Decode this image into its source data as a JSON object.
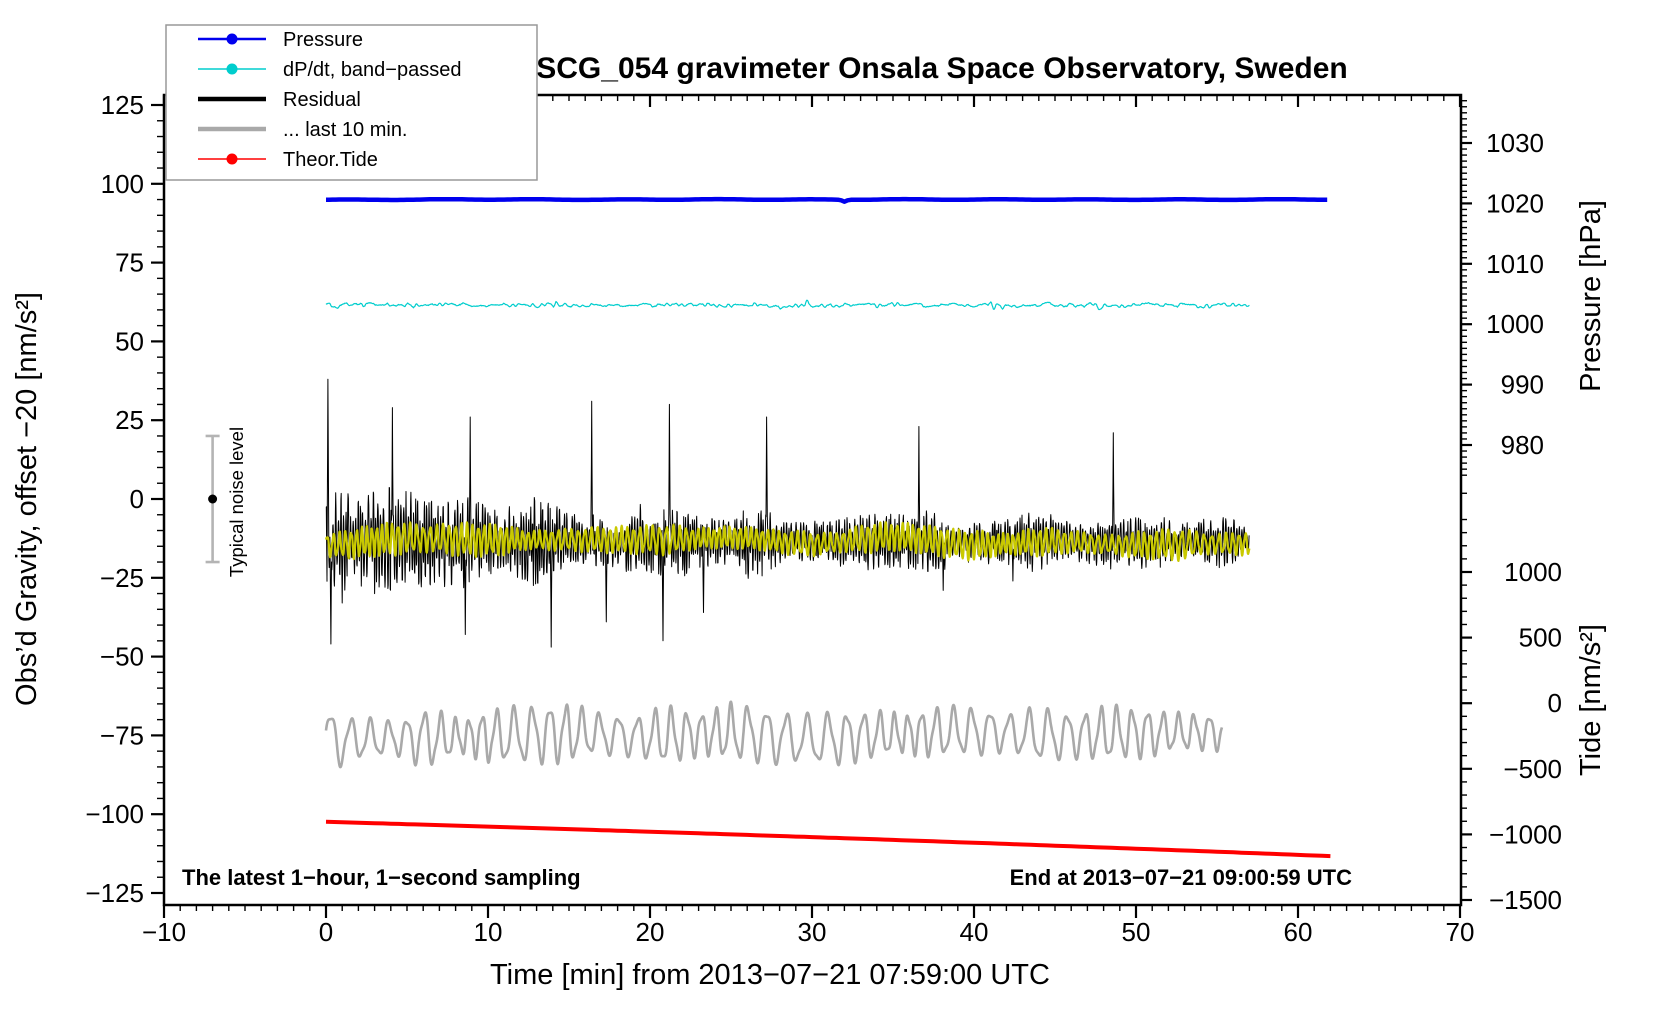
{
  "page": {
    "background": "#ffffff"
  },
  "chart_data": {
    "type": "line",
    "title": "SCG_054 gravimeter Onsala Space Observatory, Sweden",
    "axes": {
      "x": {
        "title": "Time [min] from 2013−07−21 07:59:00 UTC",
        "range": [
          -10,
          70
        ],
        "major_values": [
          -10,
          0,
          10,
          20,
          30,
          40,
          50,
          60,
          70
        ],
        "major_labels": [
          "−10",
          "0",
          "10",
          "20",
          "30",
          "40",
          "50",
          "60",
          "70"
        ],
        "minor_step": 1,
        "units": "minutes"
      },
      "gravity": {
        "title": "Obs’d Gravity, offset −20 [nm/s²]",
        "range": [
          -128,
          128
        ],
        "major_values": [
          125,
          100,
          75,
          50,
          25,
          0,
          -25,
          -50,
          -75,
          -100,
          -125
        ],
        "major_labels": [
          "125",
          "100",
          "75",
          "50",
          "25",
          "0",
          "−25",
          "−50",
          "−75",
          "−100",
          "−125"
        ],
        "minor_step": 5
      },
      "pressure": {
        "title": "Pressure [hPa]",
        "major_values": [
          1030,
          1020,
          1010,
          1000,
          990,
          980
        ],
        "major_labels": [
          "1030",
          "1020",
          "1010",
          "1000",
          "990",
          "980"
        ],
        "minor_step": 1,
        "minor_range": [
          975,
          1037
        ]
      },
      "tide": {
        "title": "Tide [nm/s²]",
        "major_values": [
          1000,
          500,
          0,
          -500,
          -1000,
          -1500
        ],
        "major_labels": [
          "1000",
          "500",
          "0",
          "−500",
          "−1000",
          "−1500"
        ],
        "minor_step": 100,
        "minor_range": [
          -1500,
          1600
        ]
      }
    },
    "annotations": {
      "sampling_note": "The latest 1−hour, 1−second sampling",
      "end_time_note": "End at 2013−07−21 09:00:59 UTC",
      "noise_marker": {
        "label": "Typical noise level",
        "x_minutes": -7,
        "center_value": 0,
        "half_range": 20,
        "bar_color": "#b4b4b4",
        "dot_color": "#000000"
      }
    },
    "legend": [
      {
        "label": "Pressure",
        "color": "#0000ee",
        "dot": true,
        "line_width": 2.5
      },
      {
        "label": "dP/dt, band−passed",
        "color": "#00cdcd",
        "dot": true,
        "line_width": 1.5
      },
      {
        "label": "Residual",
        "color": "#000000",
        "dot": false,
        "line_width": 4.5
      },
      {
        "label": "... last 10 min.",
        "color": "#a9a9a9",
        "dot": false,
        "line_width": 4.5
      },
      {
        "label": "Theor.Tide",
        "color": "#ff0000",
        "dot": true,
        "line_width": 1.5
      }
    ],
    "series": [
      {
        "name": "residual",
        "gen": "spiky",
        "color": "#000000",
        "width": 1,
        "x_start": 0,
        "x_end": 57,
        "center": -13.5,
        "amp_start": 28,
        "amp_end": 9,
        "decay_min": 16,
        "spikes": [
          [
            0.12,
            38
          ],
          [
            0.3,
            -46
          ],
          [
            1.0,
            -33
          ],
          [
            4.1,
            29
          ],
          [
            8.6,
            -43
          ],
          [
            8.9,
            26
          ],
          [
            13.9,
            -47
          ],
          [
            16.4,
            31
          ],
          [
            17.3,
            -39
          ],
          [
            20.8,
            -45
          ],
          [
            21.2,
            30
          ],
          [
            23.3,
            -36
          ],
          [
            27.2,
            26
          ],
          [
            36.6,
            23
          ],
          [
            38.1,
            -29
          ],
          [
            42.4,
            -26
          ],
          [
            48.6,
            21
          ]
        ]
      },
      {
        "name": "residual_smoothed",
        "gen": "osc",
        "color": "#c9c900",
        "width": 2.2,
        "x_start": 0,
        "x_end": 57,
        "center": -13.5,
        "amp": 4.3,
        "period_min": 0.38,
        "wander": 1.6
      },
      {
        "name": "residual_last_10_min",
        "gen": "osc",
        "color": "#a9a9a9",
        "width": 2.6,
        "x_start": 0,
        "x_end": 55.3,
        "center": -75,
        "amp": 7.8,
        "period_min": 1.05,
        "wander": 1.4
      },
      {
        "name": "theor_tide",
        "gen": "trend",
        "color": "#ff0000",
        "width": 4,
        "x_start": 0,
        "x_end": 62,
        "start_value": -102.4,
        "end_value": -113.3,
        "start_value_tide_axis": -910,
        "end_value_tide_axis": -1170
      },
      {
        "name": "pressure",
        "gen": "flat",
        "color": "#0000ee",
        "width": 4.5,
        "x_start": 0,
        "x_end": 62,
        "level": 95,
        "level_hpa": 1020,
        "notch_t": 32,
        "notch_depth": 0.6
      },
      {
        "name": "dpdt_band_passed",
        "gen": "noise",
        "color": "#00cdcd",
        "width": 1.2,
        "x_start": 0,
        "x_end": 57,
        "center": 61.5,
        "base_amp": 0.8,
        "bursts": [
          [
            0.5,
            1.1,
            0.25
          ],
          [
            14.2,
            0.7,
            0.3
          ],
          [
            27.8,
            1.8,
            0.5
          ],
          [
            29.6,
            1.4,
            0.4
          ],
          [
            33.8,
            2.0,
            0.5
          ],
          [
            35.3,
            1.1,
            0.4
          ],
          [
            41.6,
            1.3,
            0.8
          ],
          [
            48.0,
            0.8,
            0.5
          ],
          [
            54.8,
            0.9,
            0.6
          ]
        ]
      }
    ]
  }
}
